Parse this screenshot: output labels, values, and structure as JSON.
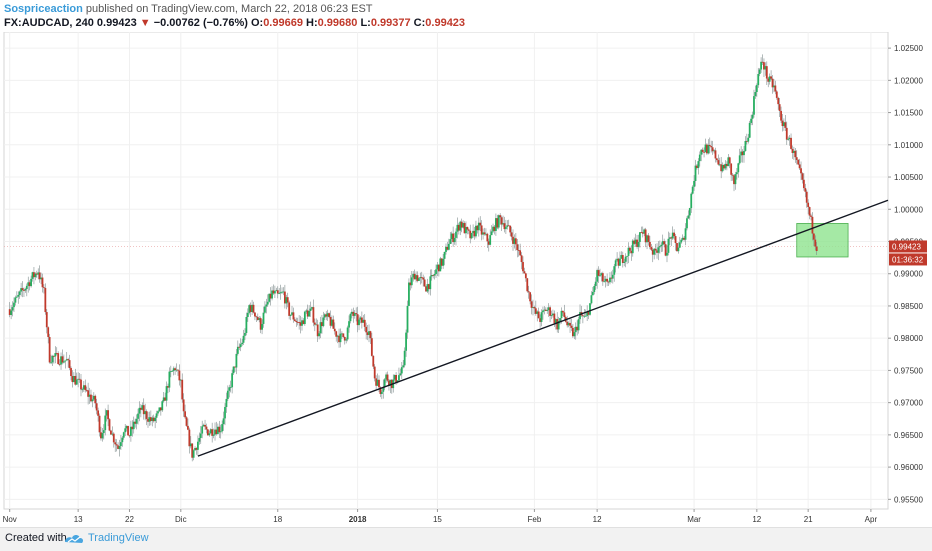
{
  "header": {
    "author": "Sospriceaction",
    "published": "published on TradingView.com, March 22, 2018 06:23 EST"
  },
  "ticker": {
    "symbol": "FX:AUDCAD, 240",
    "last": "0.99423",
    "arrow": "▼",
    "change": "−0.00762 (−0.76%)",
    "o_label": "O:",
    "o": "0.99669",
    "h_label": "H:",
    "h": "0.99680",
    "l_label": "L:",
    "l": "0.99377",
    "c_label": "C:",
    "c": "0.99423"
  },
  "chart_data": {
    "type": "candlestick",
    "y_ticks": [
      "0.95500",
      "0.96000",
      "0.96500",
      "0.97000",
      "0.97500",
      "0.98000",
      "0.98500",
      "0.99000",
      "0.99500",
      "1.00000",
      "1.00500",
      "1.01000",
      "1.01500",
      "1.02000",
      "1.02500"
    ],
    "ylim": [
      0.9535,
      1.0275
    ],
    "x_ticks": [
      {
        "label": "Nov",
        "x": 0
      },
      {
        "label": "13",
        "x": 12
      },
      {
        "label": "22",
        "x": 21
      },
      {
        "label": "Dic",
        "x": 30
      },
      {
        "label": "18",
        "x": 47
      },
      {
        "label": "2018",
        "x": 61
      },
      {
        "label": "15",
        "x": 75
      },
      {
        "label": "Feb",
        "x": 92
      },
      {
        "label": "12",
        "x": 103
      },
      {
        "label": "Mar",
        "x": 120
      },
      {
        "label": "12",
        "x": 131
      },
      {
        "label": "21",
        "x": 140
      },
      {
        "label": "Apr",
        "x": 151
      }
    ],
    "xlim": [
      -1,
      154
    ],
    "close_path": [
      [
        0,
        0.9845
      ],
      [
        2,
        0.987
      ],
      [
        4,
        0.9895
      ],
      [
        5,
        0.9905
      ],
      [
        6,
        0.987
      ],
      [
        7,
        0.977
      ],
      [
        8,
        0.977
      ],
      [
        10,
        0.9765
      ],
      [
        11,
        0.974
      ],
      [
        13,
        0.972
      ],
      [
        15,
        0.97
      ],
      [
        16,
        0.965
      ],
      [
        17,
        0.968
      ],
      [
        18,
        0.965
      ],
      [
        19,
        0.963
      ],
      [
        20,
        0.966
      ],
      [
        21,
        0.965
      ],
      [
        22,
        0.967
      ],
      [
        23,
        0.969
      ],
      [
        24,
        0.968
      ],
      [
        25,
        0.967
      ],
      [
        26,
        0.968
      ],
      [
        27,
        0.97
      ],
      [
        28,
        0.974
      ],
      [
        29,
        0.9755
      ],
      [
        30,
        0.973
      ],
      [
        30.5,
        0.968
      ],
      [
        31,
        0.966
      ],
      [
        32,
        0.962
      ],
      [
        33,
        0.964
      ],
      [
        34,
        0.966
      ],
      [
        35,
        0.9655
      ],
      [
        36,
        0.966
      ],
      [
        37,
        0.966
      ],
      [
        38,
        0.97
      ],
      [
        39,
        0.974
      ],
      [
        40,
        0.978
      ],
      [
        41,
        0.98
      ],
      [
        42,
        0.985
      ],
      [
        43,
        0.984
      ],
      [
        44,
        0.982
      ],
      [
        45,
        0.985
      ],
      [
        46,
        0.987
      ],
      [
        47,
        0.9865
      ],
      [
        48,
        0.987
      ],
      [
        49,
        0.984
      ],
      [
        50,
        0.983
      ],
      [
        51,
        0.982
      ],
      [
        52,
        0.984
      ],
      [
        53,
        0.984
      ],
      [
        54,
        0.981
      ],
      [
        55,
        0.983
      ],
      [
        56,
        0.983
      ],
      [
        57,
        0.981
      ],
      [
        58,
        0.98
      ],
      [
        59,
        0.9805
      ],
      [
        60,
        0.984
      ],
      [
        61,
        0.9825
      ],
      [
        62,
        0.9825
      ],
      [
        63,
        0.981
      ],
      [
        64,
        0.974
      ],
      [
        65,
        0.972
      ],
      [
        66,
        0.974
      ],
      [
        67,
        0.973
      ],
      [
        68,
        0.974
      ],
      [
        69,
        0.975
      ],
      [
        70,
        0.988
      ],
      [
        71,
        0.99
      ],
      [
        72,
        0.989
      ],
      [
        73,
        0.988
      ],
      [
        74,
        0.989
      ],
      [
        75,
        0.991
      ],
      [
        76,
        0.992
      ],
      [
        77,
        0.995
      ],
      [
        78,
        0.996
      ],
      [
        79,
        0.998
      ],
      [
        80,
        0.9965
      ],
      [
        81,
        0.9955
      ],
      [
        82,
        0.9975
      ],
      [
        83,
        0.996
      ],
      [
        84,
        0.995
      ],
      [
        85,
        0.9975
      ],
      [
        86,
        0.9985
      ],
      [
        87,
        0.9975
      ],
      [
        88,
        0.996
      ],
      [
        89,
        0.994
      ],
      [
        90,
        0.991
      ],
      [
        91,
        0.987
      ],
      [
        92,
        0.984
      ],
      [
        93,
        0.983
      ],
      [
        94,
        0.9845
      ],
      [
        95,
        0.984
      ],
      [
        96,
        0.982
      ],
      [
        97,
        0.984
      ],
      [
        98,
        0.9815
      ],
      [
        99,
        0.9805
      ],
      [
        100,
        0.9835
      ],
      [
        101,
        0.983
      ],
      [
        102,
        0.986
      ],
      [
        103,
        0.99
      ],
      [
        104,
        0.989
      ],
      [
        105,
        0.988
      ],
      [
        106,
        0.991
      ],
      [
        107,
        0.992
      ],
      [
        108,
        0.993
      ],
      [
        109,
        0.994
      ],
      [
        110,
        0.995
      ],
      [
        111,
        0.9965
      ],
      [
        112,
        0.995
      ],
      [
        113,
        0.993
      ],
      [
        114,
        0.995
      ],
      [
        115,
        0.9935
      ],
      [
        116,
        0.996
      ],
      [
        117,
        0.994
      ],
      [
        118,
        0.995
      ],
      [
        119,
        0.9995
      ],
      [
        120,
        1.005
      ],
      [
        121,
        1.009
      ],
      [
        122,
        1.0095
      ],
      [
        123,
        1.009
      ],
      [
        124,
        1.008
      ],
      [
        125,
        1.006
      ],
      [
        126,
        1.0075
      ],
      [
        127,
        1.004
      ],
      [
        128,
        1.0075
      ],
      [
        129,
        1.01
      ],
      [
        130,
        1.014
      ],
      [
        131,
        1.02
      ],
      [
        132,
        1.023
      ],
      [
        133,
        1.02
      ],
      [
        134,
        1.019
      ],
      [
        135,
        1.015
      ],
      [
        136,
        1.012
      ],
      [
        137,
        1.01
      ],
      [
        138,
        1.007
      ],
      [
        139,
        1.004
      ],
      [
        140,
        1.0
      ],
      [
        141,
        0.996
      ],
      [
        141.5,
        0.99423
      ]
    ],
    "current_price": "0.99423",
    "countdown": "01:36:32",
    "trendline": {
      "from": {
        "x": 33,
        "y": 0.9617
      },
      "to": {
        "x": 154,
        "y": 1.0014
      }
    },
    "highlight_zone": {
      "x_from": 138,
      "x_to": 147,
      "y_from": 0.9926,
      "y_to": 0.9978
    },
    "colors": {
      "up": "#27ae60",
      "down": "#c0392b",
      "zone": "#8fe38f",
      "wick": "#7f8c8d",
      "price_tag": "#c0392b"
    }
  },
  "footer": {
    "created": "Created with",
    "brand": "TradingView"
  }
}
